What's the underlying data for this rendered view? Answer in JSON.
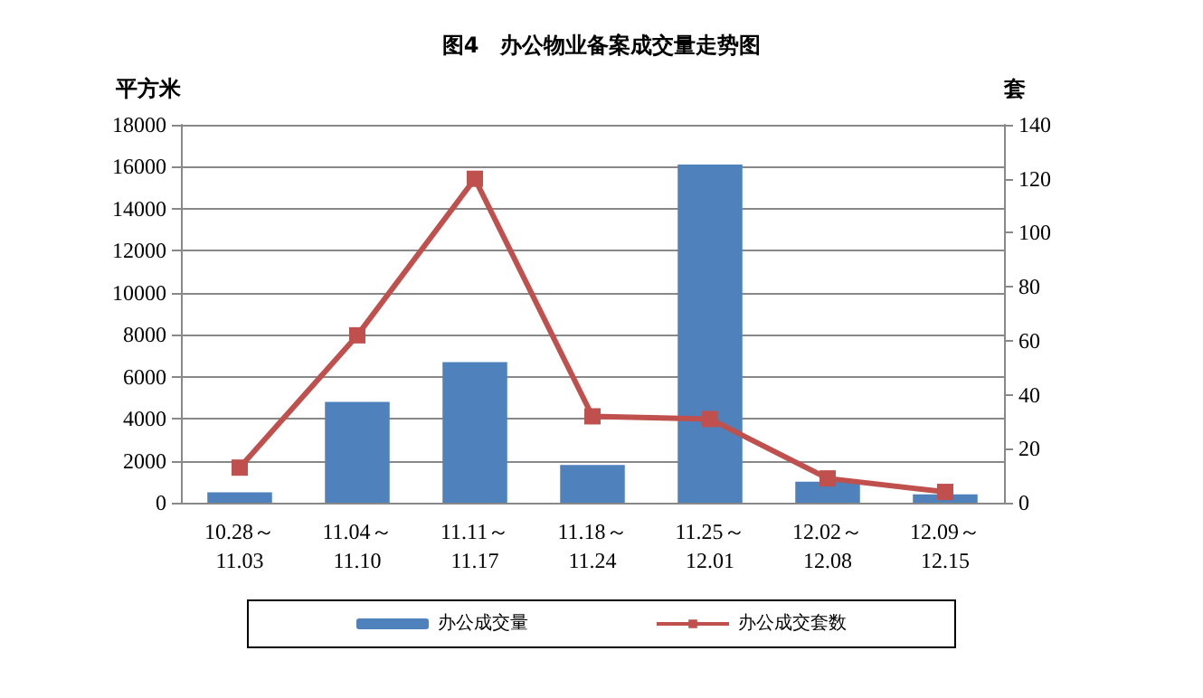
{
  "chart_data": {
    "type": "bar",
    "title": "图4　办公物业备案成交量走势图",
    "ylabel": "平方米",
    "y2label": "套",
    "categories": [
      "10.28～\n11.03",
      "11.04～\n11.10",
      "11.11～\n11.17",
      "11.18～\n11.24",
      "11.25～\n12.01",
      "12.02～\n12.08",
      "12.09～\n12.15"
    ],
    "series": [
      {
        "name": "办公成交量",
        "color": "#4f81bd",
        "values": [
          500,
          4800,
          6700,
          1800,
          16100,
          1000,
          400
        ]
      },
      {
        "name": "办公成交套数",
        "type": "line",
        "axis": "y2",
        "color": "#c0504d",
        "marker": "square",
        "values": [
          13,
          62,
          120,
          32,
          31,
          9,
          4
        ]
      }
    ],
    "ylim": [
      0,
      18000
    ],
    "yticks": [
      0,
      2000,
      4000,
      6000,
      8000,
      10000,
      12000,
      14000,
      16000,
      18000
    ],
    "y2lim": [
      0,
      140
    ],
    "y2ticks": [
      0,
      20,
      40,
      60,
      80,
      100,
      120,
      140
    ],
    "grid": "y",
    "legend": "bottom"
  }
}
